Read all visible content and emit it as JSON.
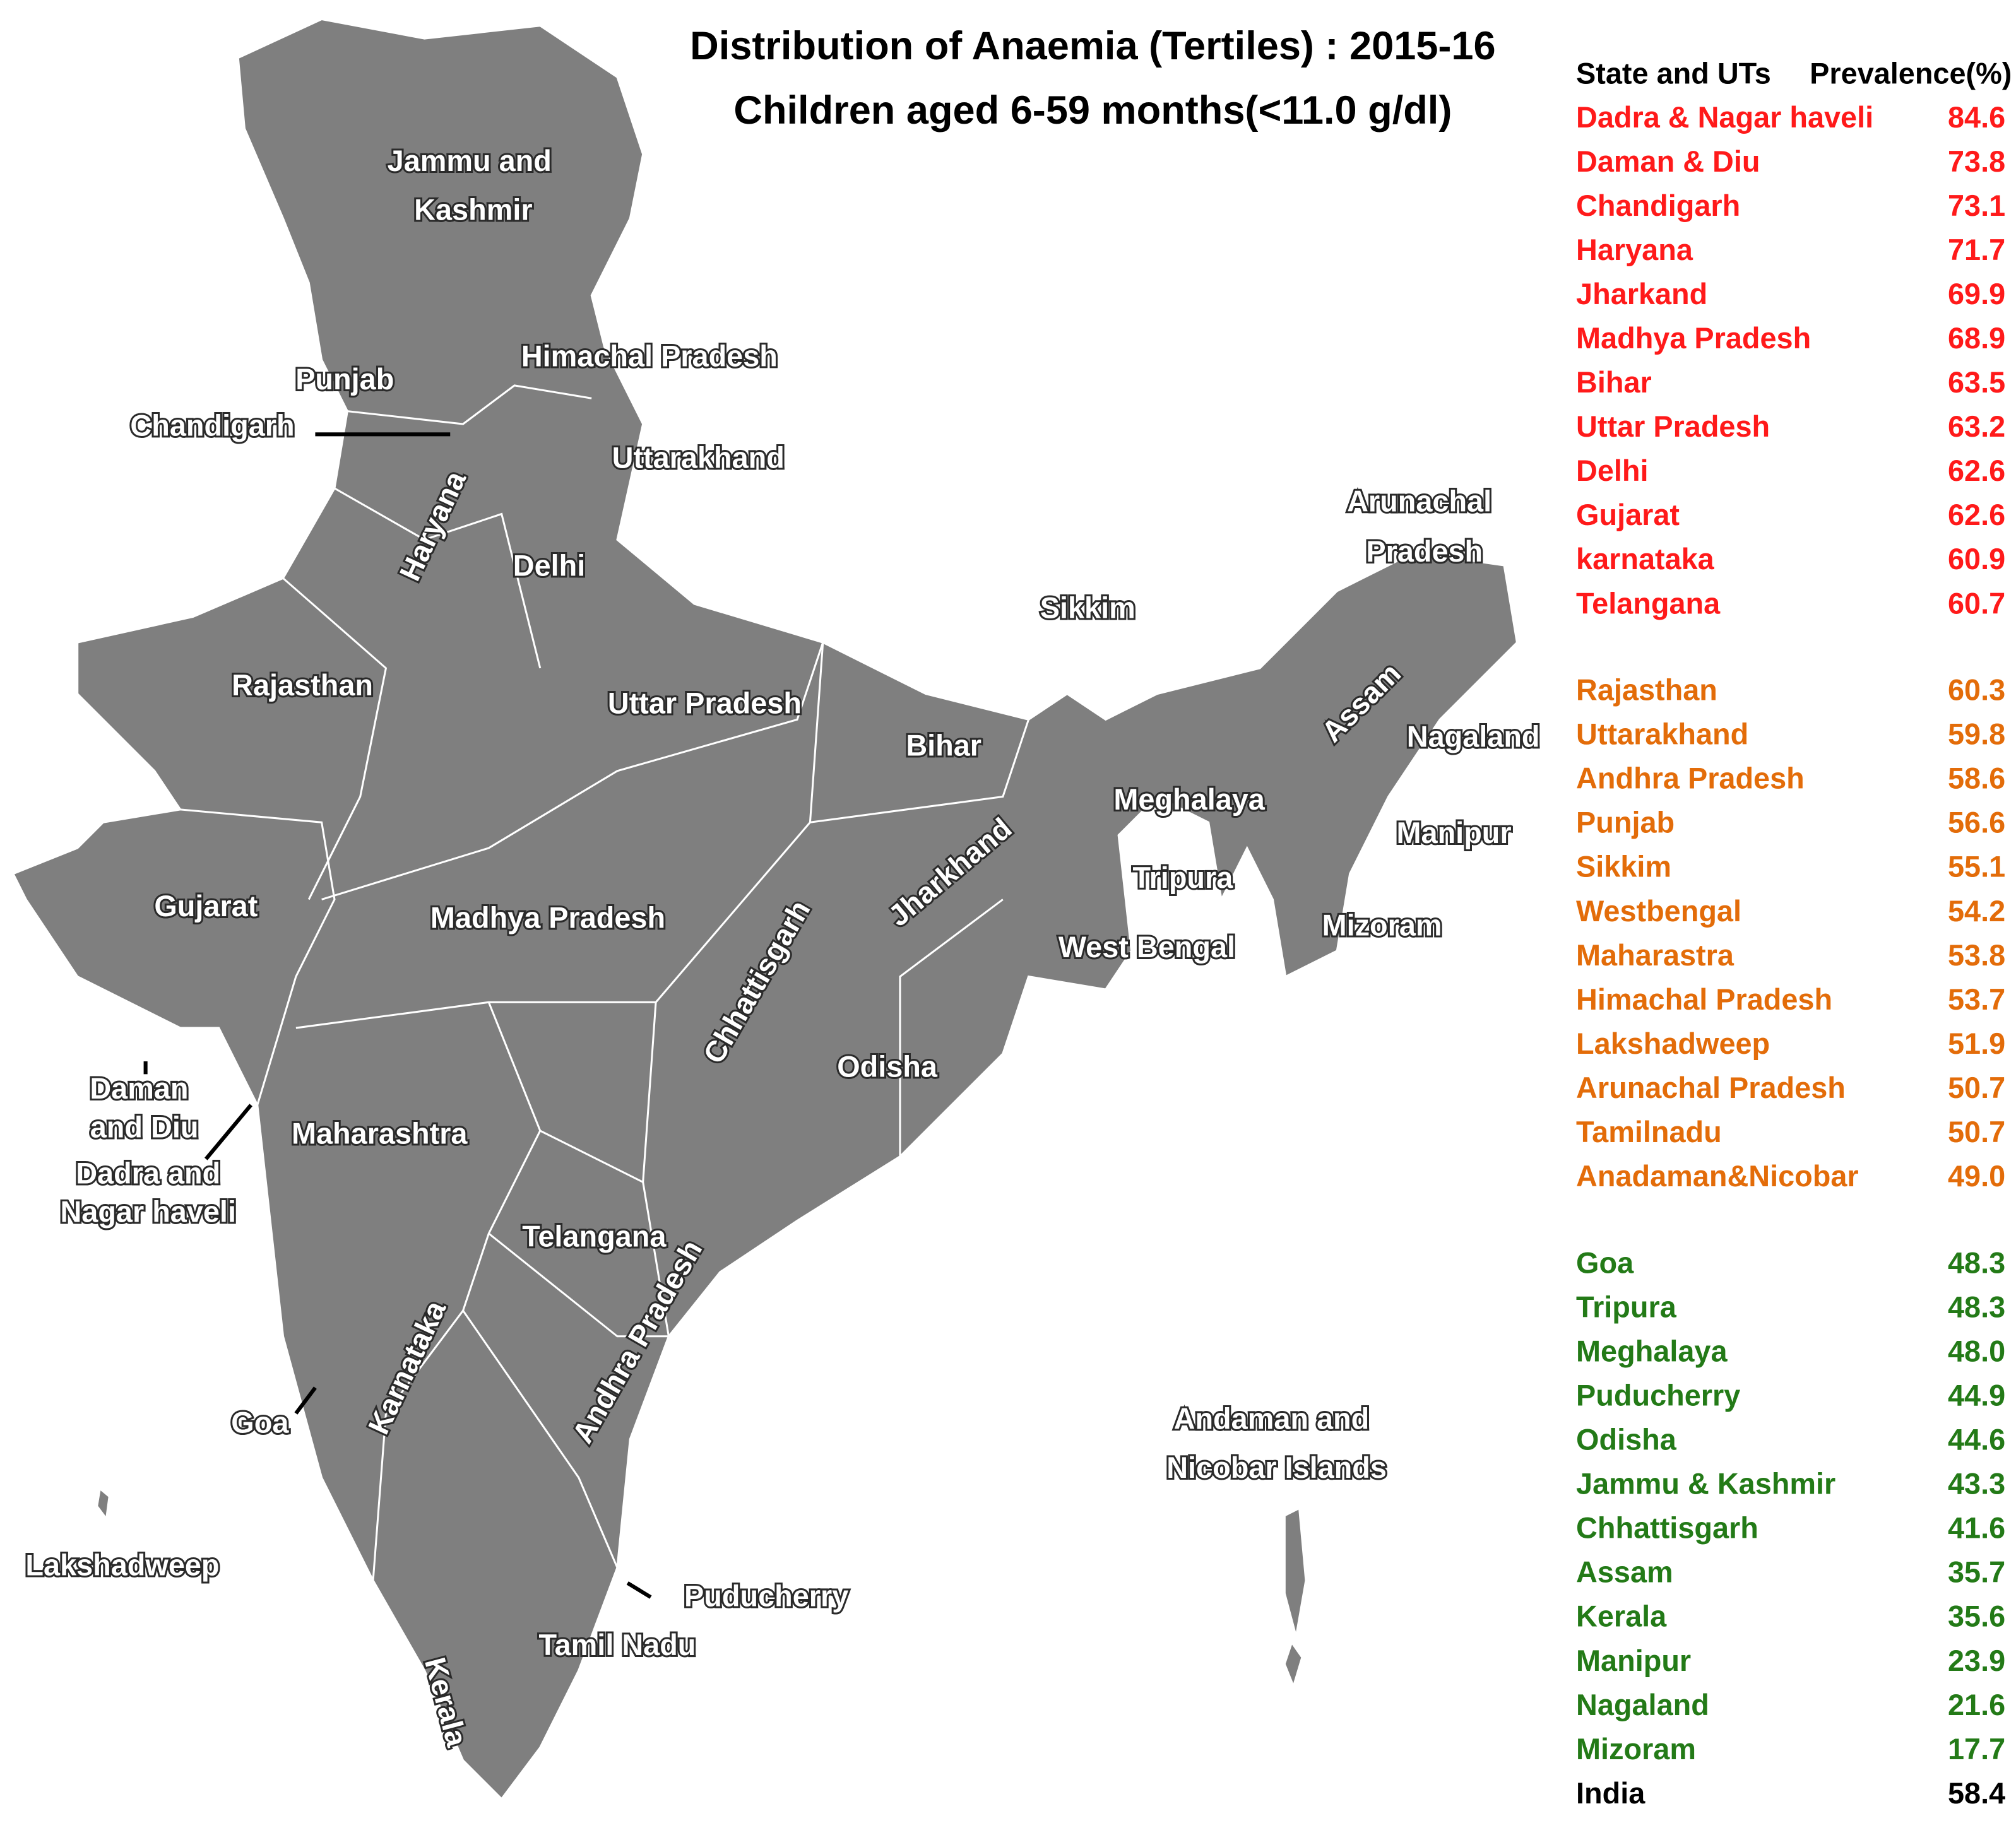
{
  "title": {
    "line1": "Distribution of Anaemia (Tertiles) : 2015-16",
    "line2": "Children aged 6-59 months(<11.0 g/dl)"
  },
  "table": {
    "header": [
      "State and UTs",
      "Prevalence(%)"
    ],
    "groups": [
      {
        "color": "#ff1a1a",
        "rows": [
          [
            "Dadra & Nagar haveli",
            "84.6"
          ],
          [
            "Daman & Diu",
            "73.8"
          ],
          [
            "Chandigarh",
            "73.1"
          ],
          [
            "Haryana",
            "71.7"
          ],
          [
            "Jharkand",
            "69.9"
          ],
          [
            "Madhya Pradesh",
            "68.9"
          ],
          [
            "Bihar",
            "63.5"
          ],
          [
            "Uttar Pradesh",
            "63.2"
          ],
          [
            "Delhi",
            "62.6"
          ],
          [
            "Gujarat",
            "62.6"
          ],
          [
            "karnataka",
            "60.9"
          ],
          [
            "Telangana",
            "60.7"
          ]
        ]
      },
      {
        "color": "#e36c09",
        "rows": [
          [
            "Rajasthan",
            "60.3"
          ],
          [
            "Uttarakhand",
            "59.8"
          ],
          [
            "Andhra Pradesh",
            "58.6"
          ],
          [
            "Punjab",
            "56.6"
          ],
          [
            "Sikkim",
            "55.1"
          ],
          [
            "Westbengal",
            "54.2"
          ],
          [
            "Maharastra",
            "53.8"
          ],
          [
            "Himachal Pradesh",
            "53.7"
          ],
          [
            "Lakshadweep",
            "51.9"
          ],
          [
            "Arunachal Pradesh",
            "50.7"
          ],
          [
            "Tamilnadu",
            "50.7"
          ],
          [
            "Anadaman&Nicobar",
            "49.0"
          ]
        ]
      },
      {
        "color": "#237a17",
        "rows": [
          [
            "Goa",
            "48.3"
          ],
          [
            "Tripura",
            "48.3"
          ],
          [
            "Meghalaya",
            "48.0"
          ],
          [
            "Puducherry",
            "44.9"
          ],
          [
            "Odisha",
            "44.6"
          ],
          [
            "Jammu & Kashmir",
            "43.3"
          ],
          [
            "Chhattisgarh",
            "41.6"
          ],
          [
            "Assam",
            "35.7"
          ],
          [
            "Kerala",
            "35.6"
          ],
          [
            "Manipur",
            "23.9"
          ],
          [
            "Nagaland",
            "21.6"
          ],
          [
            "Mizoram",
            "17.7"
          ]
        ]
      }
    ],
    "total": {
      "color": "#000000",
      "row": [
        "India",
        "58.4"
      ]
    }
  },
  "map": {
    "labels": [
      "Jammu and",
      "Kashmir",
      "Himachal Pradesh",
      "Punjab",
      "Chandigarh",
      "Uttarakhand",
      "Haryana",
      "Delhi",
      "Rajasthan",
      "Uttar Pradesh",
      "Bihar",
      "Sikkim",
      "Arunachal",
      "Pradesh",
      "Assam",
      "Nagaland",
      "Meghalaya",
      "Manipur",
      "Tripura",
      "Mizoram",
      "West Bengal",
      "Jharkhand",
      "Gujarat",
      "Madhya Pradesh",
      "Chhattisgarh",
      "Odisha",
      "Daman",
      "and Diu",
      "Maharashtra",
      "Dadra and",
      "Nagar haveli",
      "Telangana",
      "Andhra Pradesh",
      "Karnataka",
      "Goa",
      "Andaman and",
      "Nicobar Islands",
      "Lakshadweep",
      "Puducherry",
      "Tamil Nadu",
      "Kerala"
    ]
  }
}
